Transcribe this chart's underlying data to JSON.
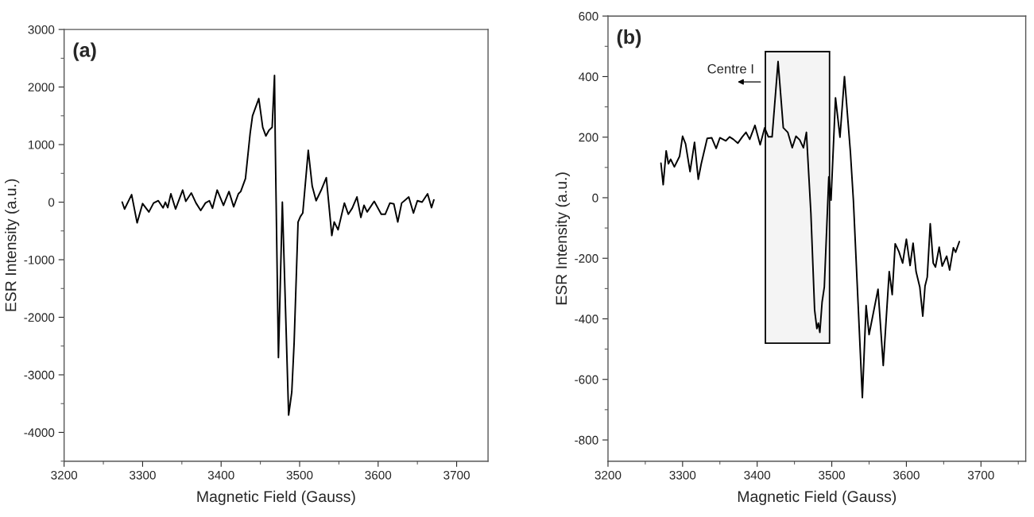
{
  "chart_data": [
    {
      "type": "line",
      "title": "(a)",
      "xlabel": "Magnetic Field (Gauss)",
      "ylabel": "ESR Intensity (a.u.)",
      "color": "#000000",
      "x": [
        3274,
        3277,
        3286,
        3293,
        3300,
        3308,
        3314,
        3320,
        3326,
        3329,
        3332,
        3336,
        3342,
        3351,
        3355,
        3362,
        3368,
        3374,
        3380,
        3385,
        3389,
        3395,
        3403,
        3410,
        3416,
        3422,
        3425,
        3431,
        3437,
        3440,
        3448,
        3453,
        3457,
        3461,
        3465,
        3468,
        3469,
        3473,
        3478,
        3486,
        3490,
        3493,
        3498,
        3501,
        3504,
        3511,
        3516,
        3521,
        3528,
        3534,
        3541,
        3544,
        3549,
        3557,
        3562,
        3567,
        3573,
        3578,
        3582,
        3586,
        3595,
        3604,
        3609,
        3615,
        3620,
        3625,
        3630,
        3639,
        3645,
        3650,
        3656,
        3663,
        3668,
        3671
      ],
      "values": [
        0,
        -120,
        130,
        -360,
        -25,
        -170,
        -15,
        25,
        -100,
        0,
        -95,
        145,
        -120,
        210,
        15,
        160,
        -15,
        -145,
        -15,
        25,
        -105,
        210,
        -55,
        185,
        -80,
        145,
        185,
        410,
        1200,
        1500,
        1800,
        1300,
        1150,
        1250,
        1300,
        2200,
        1000,
        -2700,
        0,
        -3700,
        -3300,
        -2440,
        -345,
        -250,
        -190,
        900,
        280,
        25,
        225,
        425,
        -580,
        -345,
        -480,
        -15,
        -210,
        -105,
        90,
        -265,
        -55,
        -170,
        15,
        -210,
        -210,
        -15,
        -30,
        -345,
        -15,
        90,
        -190,
        25,
        0,
        145,
        -95,
        40
      ],
      "xlim": [
        3200,
        3740
      ],
      "ylim": [
        -4500,
        3000
      ],
      "xticks": [
        3200,
        3300,
        3400,
        3500,
        3600,
        3700
      ],
      "yticks": [
        -4000,
        -3000,
        -2000,
        -1000,
        0,
        1000,
        2000,
        3000
      ]
    },
    {
      "type": "line",
      "title": "(b)",
      "xlabel": "Magnetic Field (Gauss)",
      "ylabel": "ESR Intensity (a.u.)",
      "color": "#000000",
      "x": [
        3271,
        3274,
        3278,
        3281,
        3284,
        3289,
        3296,
        3300,
        3304,
        3310,
        3316,
        3321,
        3325,
        3333,
        3339,
        3345,
        3350,
        3358,
        3363,
        3368,
        3374,
        3380,
        3385,
        3390,
        3397,
        3404,
        3410,
        3415,
        3420,
        3428,
        3435,
        3441,
        3447,
        3452,
        3457,
        3462,
        3466,
        3472,
        3477,
        3480,
        3482,
        3484,
        3487,
        3490,
        3496,
        3499,
        3505,
        3511,
        3517,
        3525,
        3529,
        3541,
        3546,
        3550,
        3562,
        3569,
        3577,
        3581,
        3585,
        3590,
        3595,
        3600,
        3605,
        3609,
        3613,
        3618,
        3622,
        3625,
        3628,
        3632,
        3636,
        3639,
        3644,
        3648,
        3654,
        3658,
        3663,
        3666,
        3671
      ],
      "values": [
        114,
        43,
        155,
        112,
        127,
        102,
        137,
        203,
        178,
        86,
        183,
        61,
        112,
        196,
        198,
        163,
        198,
        188,
        201,
        193,
        180,
        201,
        216,
        193,
        239,
        175,
        231,
        201,
        201,
        450,
        231,
        216,
        165,
        203,
        191,
        165,
        216,
        -51,
        -371,
        -432,
        -414,
        -445,
        -345,
        -295,
        69,
        -8,
        330,
        200,
        400,
        150,
        -10,
        -660,
        -356,
        -452,
        -302,
        -554,
        -244,
        -320,
        -152,
        -178,
        -216,
        -137,
        -224,
        -150,
        -244,
        -295,
        -391,
        -292,
        -262,
        -86,
        -216,
        -229,
        -163,
        -226,
        -193,
        -239,
        -165,
        -180,
        -145
      ],
      "xlim": [
        3200,
        3760
      ],
      "ylim": [
        -870,
        600
      ],
      "xticks": [
        3200,
        3300,
        3400,
        3500,
        3600,
        3700
      ],
      "yticks": [
        -800,
        -600,
        -400,
        -200,
        0,
        200,
        400,
        600
      ],
      "annotations": [
        "Centre I"
      ],
      "bands": [
        {
          "axis": "x",
          "from": 3411,
          "to": 3497,
          "color": "#f4f4f4"
        }
      ]
    }
  ]
}
